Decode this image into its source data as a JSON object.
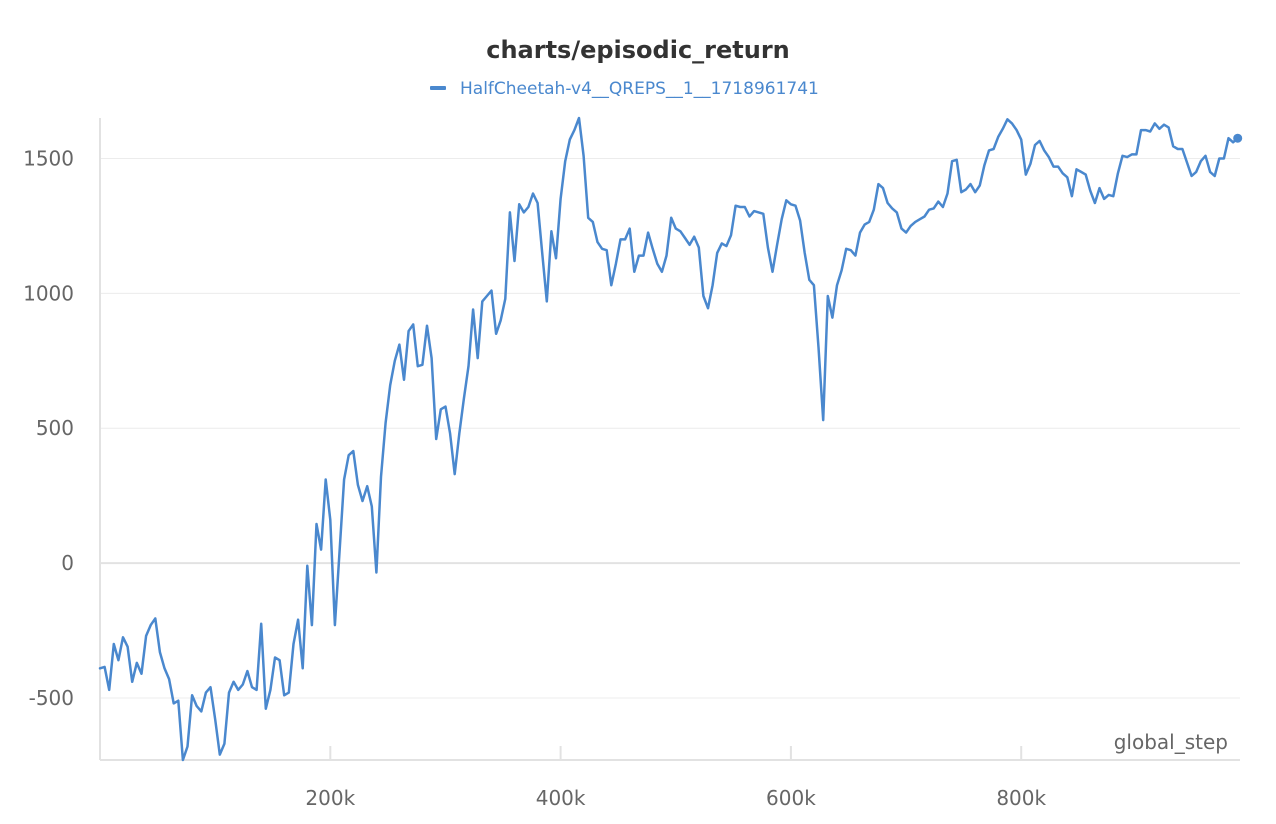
{
  "chart_data": {
    "type": "line",
    "title": "charts/episodic_return",
    "xlabel": "global_step",
    "ylabel": "",
    "xlim": [
      0,
      990000
    ],
    "ylim": [
      -730,
      1650
    ],
    "x_ticks": [
      200000,
      400000,
      600000,
      800000
    ],
    "x_tick_labels": [
      "200k",
      "400k",
      "600k",
      "800k"
    ],
    "y_ticks": [
      -500,
      0,
      500,
      1000,
      1500
    ],
    "y_tick_labels": [
      "-500",
      "0",
      "500",
      "1000",
      "1500"
    ],
    "grid": true,
    "legend_position": "top-center",
    "series": [
      {
        "name": "HalfCheetah-v4__QREPS__1__1718961741",
        "color": "#4a88ce",
        "x": [
          0,
          4000,
          8000,
          12000,
          16000,
          20000,
          24000,
          28000,
          32000,
          36000,
          40000,
          44000,
          48000,
          52000,
          56000,
          60000,
          64000,
          68000,
          72000,
          76000,
          80000,
          84000,
          88000,
          92000,
          96000,
          100000,
          104000,
          108000,
          112000,
          116000,
          120000,
          124000,
          128000,
          132000,
          136000,
          140000,
          144000,
          148000,
          152000,
          156000,
          160000,
          164000,
          168000,
          172000,
          176000,
          180000,
          184000,
          188000,
          192000,
          196000,
          200000,
          204000,
          208000,
          212000,
          216000,
          220000,
          224000,
          228000,
          232000,
          236000,
          240000,
          244000,
          248000,
          252000,
          256000,
          260000,
          264000,
          268000,
          272000,
          276000,
          280000,
          284000,
          288000,
          292000,
          296000,
          300000,
          304000,
          308000,
          312000,
          316000,
          320000,
          324000,
          328000,
          332000,
          336000,
          340000,
          344000,
          348000,
          352000,
          356000,
          360000,
          364000,
          368000,
          372000,
          376000,
          380000,
          384000,
          388000,
          392000,
          396000,
          400000,
          404000,
          408000,
          412000,
          416000,
          420000,
          424000,
          428000,
          432000,
          436000,
          440000,
          444000,
          448000,
          452000,
          456000,
          460000,
          464000,
          468000,
          472000,
          476000,
          480000,
          484000,
          488000,
          492000,
          496000,
          500000,
          504000,
          508000,
          512000,
          516000,
          520000,
          524000,
          528000,
          532000,
          536000,
          540000,
          544000,
          548000,
          552000,
          556000,
          560000,
          564000,
          568000,
          572000,
          576000,
          580000,
          584000,
          588000,
          592000,
          596000,
          600000,
          604000,
          608000,
          612000,
          616000,
          620000,
          624000,
          628000,
          632000,
          636000,
          640000,
          644000,
          648000,
          652000,
          656000,
          660000,
          664000,
          668000,
          672000,
          676000,
          680000,
          684000,
          688000,
          692000,
          696000,
          700000,
          704000,
          708000,
          712000,
          716000,
          720000,
          724000,
          728000,
          732000,
          736000,
          740000,
          744000,
          748000,
          752000,
          756000,
          760000,
          764000,
          768000,
          772000,
          776000,
          780000,
          784000,
          788000,
          792000,
          796000,
          800000,
          804000,
          808000,
          812000,
          816000,
          820000,
          824000,
          828000,
          832000,
          836000,
          840000,
          844000,
          848000,
          852000,
          856000,
          860000,
          864000,
          868000,
          872000,
          876000,
          880000,
          884000,
          888000,
          892000,
          896000,
          900000,
          904000,
          908000,
          912000,
          916000,
          920000,
          924000,
          928000,
          932000,
          936000,
          940000,
          944000,
          948000,
          952000,
          956000,
          960000,
          964000,
          968000,
          972000,
          976000,
          980000,
          984000,
          988000
        ],
        "y": [
          -390,
          -385,
          -470,
          -300,
          -360,
          -275,
          -310,
          -440,
          -370,
          -410,
          -270,
          -230,
          -205,
          -330,
          -390,
          -430,
          -520,
          -510,
          -730,
          -680,
          -490,
          -530,
          -550,
          -480,
          -460,
          -580,
          -710,
          -670,
          -480,
          -440,
          -470,
          -450,
          -400,
          -460,
          -470,
          -225,
          -540,
          -470,
          -350,
          -360,
          -490,
          -480,
          -300,
          -210,
          -390,
          -10,
          -230,
          145,
          50,
          310,
          160,
          -230,
          40,
          310,
          400,
          415,
          290,
          230,
          285,
          210,
          -35,
          320,
          520,
          660,
          750,
          810,
          680,
          860,
          885,
          730,
          735,
          880,
          760,
          460,
          570,
          580,
          480,
          330,
          480,
          610,
          730,
          940,
          760,
          970,
          990,
          1010,
          850,
          900,
          980,
          1300,
          1120,
          1330,
          1300,
          1320,
          1370,
          1335,
          1150,
          970,
          1230,
          1130,
          1350,
          1490,
          1570,
          1605,
          1650,
          1510,
          1280,
          1265,
          1190,
          1165,
          1160,
          1030,
          1110,
          1200,
          1200,
          1240,
          1080,
          1140,
          1140,
          1225,
          1165,
          1110,
          1080,
          1140,
          1280,
          1240,
          1230,
          1205,
          1180,
          1210,
          1170,
          990,
          945,
          1030,
          1150,
          1185,
          1175,
          1215,
          1325,
          1320,
          1320,
          1285,
          1305,
          1300,
          1295,
          1170,
          1080,
          1180,
          1275,
          1345,
          1330,
          1325,
          1270,
          1150,
          1050,
          1030,
          800,
          530,
          990,
          910,
          1030,
          1085,
          1165,
          1160,
          1140,
          1225,
          1255,
          1265,
          1310,
          1405,
          1390,
          1335,
          1315,
          1300,
          1240,
          1225,
          1250,
          1265,
          1275,
          1285,
          1310,
          1315,
          1340,
          1320,
          1370,
          1490,
          1495,
          1375,
          1385,
          1405,
          1375,
          1400,
          1475,
          1530,
          1535,
          1580,
          1610,
          1645,
          1630,
          1605,
          1570,
          1440,
          1480,
          1550,
          1565,
          1530,
          1505,
          1470,
          1470,
          1445,
          1430,
          1360,
          1460,
          1450,
          1440,
          1380,
          1335,
          1390,
          1350,
          1365,
          1360,
          1445,
          1510,
          1505,
          1515,
          1515,
          1605,
          1605,
          1600,
          1630,
          1610,
          1625,
          1615,
          1545,
          1535,
          1535,
          1485,
          1435,
          1450,
          1490,
          1510,
          1450,
          1435,
          1500,
          1500,
          1575,
          1560,
          1575
        ]
      }
    ]
  }
}
